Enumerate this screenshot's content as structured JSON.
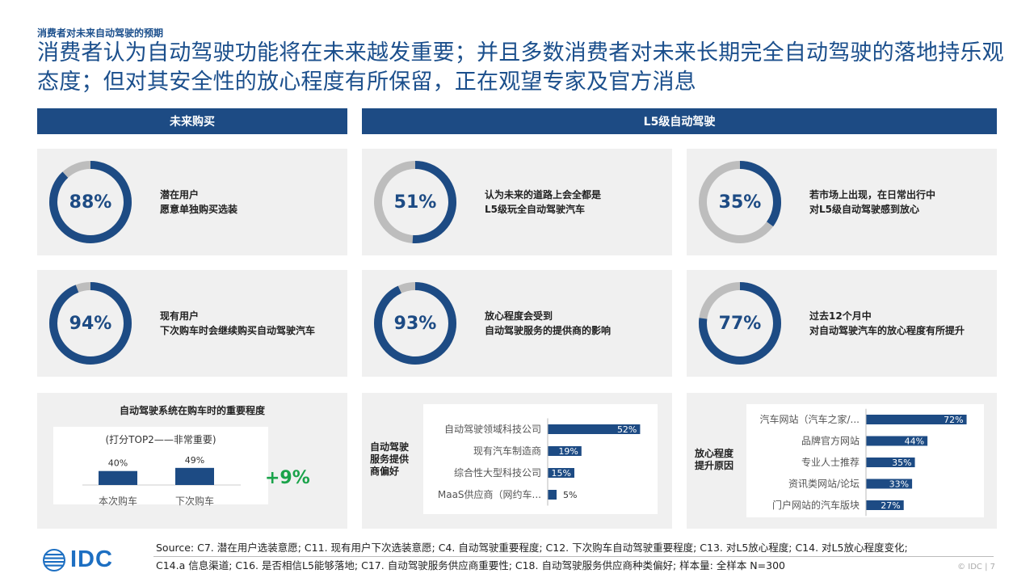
{
  "header": {
    "kicker": "消费者对未来自动驾驶的预期",
    "headline": "消费者认为自动驾驶功能将在未来越发重要；并且多数消费者对未来长期完全自动驾驶的落地持乐观态度；但对其安全性的放心程度有所保留，正在观望专家及官方消息"
  },
  "sections": {
    "left": "未来购买",
    "right": "L5级自动驾驶"
  },
  "colors": {
    "primary": "#1d4b84",
    "ring_bg": "#bdbdbd",
    "positive": "#1aa34a",
    "card_bg": "#f0f0f0"
  },
  "donuts": [
    {
      "pct": 88,
      "label": "88%",
      "lines": [
        "潜在用户",
        "愿意单独购买选装"
      ]
    },
    {
      "pct": 51,
      "label": "51%",
      "lines": [
        "认为未来的道路上会全都是",
        "L5级玩全自动驾驶汽车"
      ]
    },
    {
      "pct": 35,
      "label": "35%",
      "lines": [
        "若市场上出现，在日常出行中",
        "对L5级自动驾驶感到放心"
      ]
    },
    {
      "pct": 94,
      "label": "94%",
      "lines": [
        "现有用户",
        "下次购车时会继续购买自动驾驶汽车"
      ]
    },
    {
      "pct": 93,
      "label": "93%",
      "lines": [
        "放心程度会受到",
        "自动驾驶服务的提供商的影响"
      ]
    },
    {
      "pct": 77,
      "label": "77%",
      "lines": [
        "过去12个月中",
        "对自动驾驶汽车的放心程度有所提升"
      ]
    }
  ],
  "importance": {
    "title": "自动驾驶系统在购车时的重要程度",
    "subtitle": "(打分TOP2——非常重要)",
    "delta": "+9%"
  },
  "provider": {
    "side_label": [
      "自动驾驶",
      "服务提供",
      "商偏好"
    ]
  },
  "trust": {
    "side_label": [
      "放心程度",
      "提升原因"
    ]
  },
  "chart_data": [
    {
      "type": "bar",
      "title": "自动驾驶系统在购车时的重要程度",
      "subtitle": "(打分TOP2——非常重要)",
      "categories": [
        "本次购车",
        "下次购车"
      ],
      "values": [
        40,
        49
      ],
      "value_labels": [
        "40%",
        "49%"
      ],
      "unit": "%"
    },
    {
      "type": "bar",
      "orientation": "horizontal",
      "title": "",
      "categories": [
        "自动驾驶领域科技公司",
        "现有汽车制造商",
        "综合性大型科技公司",
        "MaaS供应商（网约车..."
      ],
      "values": [
        52,
        19,
        15,
        5
      ],
      "value_labels": [
        "52%",
        "19%",
        "15%",
        "5%"
      ],
      "unit": "%"
    },
    {
      "type": "bar",
      "orientation": "horizontal",
      "title": "",
      "categories": [
        "汽车网站（汽车之家/...",
        "品牌官方网站",
        "专业人士推荐",
        "资讯类网站/论坛",
        "门户网站的汽车版块"
      ],
      "values": [
        72,
        44,
        35,
        33,
        27
      ],
      "value_labels": [
        "72%",
        "44%",
        "35%",
        "33%",
        "27%"
      ],
      "unit": "%"
    }
  ],
  "footer": {
    "source_lines": [
      "Source: C7. 潜在用户选装意愿; C11. 现有用户下次选装意愿; C4. 自动驾驶重要程度; C12. 下次购车自动驾驶重要程度; C13. 对L5放心程度; C14. 对L5放心程度变化;",
      "C14.a 信息渠道; C16. 是否相信L5能够落地; C17. 自动驾驶服务供应商重要性; C18. 自动驾驶服务供应商种类偏好; 样本量: 全样本 N=300"
    ],
    "copyright": "© IDC |  7",
    "logo_text": "IDC"
  }
}
